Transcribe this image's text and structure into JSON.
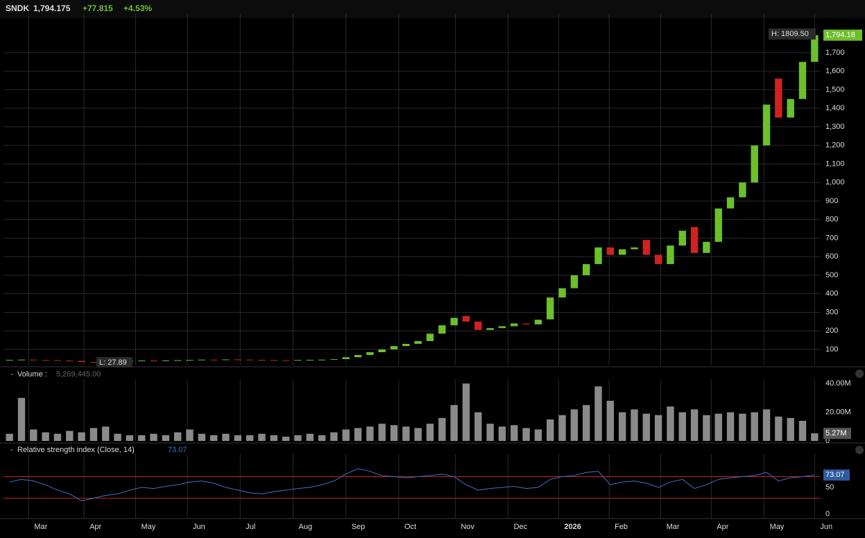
{
  "header": {
    "symbol": "SNDK",
    "price": "1,794.175",
    "change": "+77.815",
    "change_pct": "+4.53%"
  },
  "chart_data": [
    {
      "type": "candlestick",
      "annotations": {
        "high": "H: 1809.50",
        "low": "L: 27.89",
        "last": "1,794.18"
      },
      "up_color": "#6cc02b",
      "down_color": "#d02222",
      "open": [
        42,
        44,
        45,
        43,
        42,
        40,
        38,
        32,
        30,
        33,
        36,
        38,
        40,
        39,
        41,
        42,
        43,
        45,
        44,
        46,
        45,
        44,
        43,
        42,
        41,
        43,
        44,
        45,
        48,
        58,
        70,
        85,
        100,
        118,
        130,
        145,
        185,
        230,
        280,
        250,
        205,
        215,
        225,
        240,
        235,
        262,
        380,
        430,
        500,
        560,
        650,
        610,
        640,
        690,
        610,
        560,
        660,
        760,
        620,
        680,
        860,
        920,
        1000,
        1200,
        1560,
        1350,
        1450,
        1650
      ],
      "close": [
        44,
        45,
        43,
        42,
        40,
        38,
        32,
        30,
        33,
        36,
        38,
        40,
        39,
        41,
        42,
        43,
        45,
        44,
        46,
        45,
        44,
        43,
        42,
        41,
        43,
        44,
        45,
        48,
        58,
        70,
        85,
        100,
        118,
        130,
        145,
        185,
        230,
        270,
        250,
        205,
        215,
        225,
        240,
        235,
        260,
        380,
        430,
        500,
        560,
        650,
        610,
        640,
        650,
        610,
        560,
        660,
        740,
        620,
        680,
        860,
        920,
        1000,
        1200,
        1420,
        1350,
        1450,
        1650,
        1794.18
      ],
      "xlim": [
        -0.5,
        67.5
      ],
      "ylim": [
        14,
        1909
      ],
      "xticks": [
        {
          "value": 1.6,
          "label": "Mar"
        },
        {
          "value": 6.2,
          "label": "Apr"
        },
        {
          "value": 10.5,
          "label": "May"
        },
        {
          "value": 14.8,
          "label": "Jun"
        },
        {
          "value": 19.2,
          "label": "Jul"
        },
        {
          "value": 23.6,
          "label": "Aug"
        },
        {
          "value": 28,
          "label": "Sep"
        },
        {
          "value": 32.4,
          "label": "Oct"
        },
        {
          "value": 37.1,
          "label": "Nov"
        },
        {
          "value": 41.5,
          "label": "Dec"
        },
        {
          "value": 45.7,
          "label": "2026"
        },
        {
          "value": 49.9,
          "label": "Feb"
        },
        {
          "value": 54.2,
          "label": "Mar"
        },
        {
          "value": 58.4,
          "label": "Apr"
        },
        {
          "value": 62.8,
          "label": "May"
        },
        {
          "value": 67,
          "label": "Jun"
        }
      ],
      "yticks": [
        100,
        200,
        300,
        400,
        500,
        600,
        700,
        800,
        900,
        {
          "value": 1000,
          "label": "1,000"
        },
        {
          "value": 1100,
          "label": "1,100"
        },
        {
          "value": 1200,
          "label": "1,200"
        },
        {
          "value": 1300,
          "label": "1,300"
        },
        {
          "value": 1400,
          "label": "1,400"
        },
        {
          "value": 1500,
          "label": "1,500"
        },
        {
          "value": 1600,
          "label": "1,600"
        },
        {
          "value": 1700,
          "label": "1,700"
        }
      ],
      "grid": true
    },
    {
      "type": "bar",
      "title": "Volume :",
      "subtitle": "5,269,445.00",
      "last_label": "5.27M",
      "color": "#8a8a8a",
      "values": [
        5,
        30,
        8,
        6,
        5,
        7,
        6,
        9,
        10,
        5,
        4,
        4,
        5,
        4,
        6,
        8,
        5,
        4,
        5,
        4,
        4,
        5,
        4,
        3,
        4,
        5,
        4,
        6,
        8,
        9,
        10,
        12,
        11,
        10,
        9,
        12,
        16,
        25,
        40,
        20,
        12,
        10,
        11,
        9,
        8,
        15,
        18,
        22,
        25,
        38,
        28,
        20,
        22,
        19,
        18,
        24,
        20,
        22,
        18,
        19,
        20,
        19,
        20,
        22,
        17,
        16,
        14,
        5.27
      ],
      "ylim": [
        0,
        43
      ],
      "yticks": [
        0,
        {
          "value": 20,
          "label": "20.00M"
        },
        {
          "value": 40,
          "label": "40.00M"
        }
      ],
      "grid": true
    },
    {
      "type": "line",
      "title": "Relative strength index (Close, 14)",
      "subtitle": "73.07",
      "color": "#3f72c8",
      "level_color": "#c42020",
      "values": [
        60,
        65,
        62,
        55,
        45,
        38,
        25,
        30,
        35,
        38,
        45,
        50,
        48,
        52,
        55,
        60,
        62,
        58,
        50,
        45,
        40,
        38,
        42,
        45,
        48,
        50,
        55,
        62,
        75,
        85,
        80,
        72,
        70,
        68,
        70,
        72,
        75,
        70,
        55,
        45,
        48,
        50,
        52,
        48,
        50,
        65,
        70,
        72,
        78,
        80,
        55,
        60,
        62,
        58,
        50,
        60,
        65,
        48,
        55,
        65,
        68,
        70,
        72,
        78,
        62,
        68,
        70,
        73.07
      ],
      "levels": [
        70,
        30
      ],
      "ylim": [
        -8,
        112
      ],
      "yticks": [
        0,
        50
      ],
      "grid": true
    }
  ]
}
